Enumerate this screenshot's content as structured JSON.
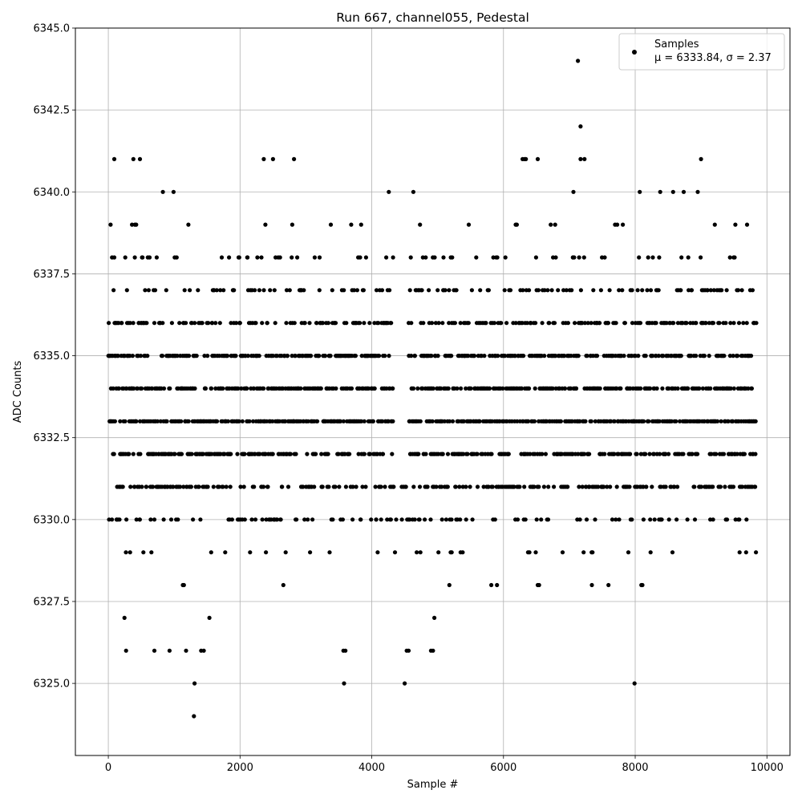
{
  "chart_data": {
    "type": "scatter",
    "title": "Run 667, channel055, Pedestal",
    "xlabel": "Sample #",
    "ylabel": "ADC Counts",
    "xlim": [
      -500,
      10350
    ],
    "ylim": [
      6322.8,
      6345.0
    ],
    "xticks": [
      0,
      2000,
      4000,
      6000,
      8000,
      10000
    ],
    "xtick_labels": [
      "0",
      "2000",
      "4000",
      "6000",
      "8000",
      "10000"
    ],
    "yticks": [
      6325.0,
      6327.5,
      6330.0,
      6332.5,
      6335.0,
      6337.5,
      6340.0,
      6342.5,
      6345.0
    ],
    "ytick_labels": [
      "6325.0",
      "6327.5",
      "6330.0",
      "6332.5",
      "6335.0",
      "6337.5",
      "6340.0",
      "6342.5",
      "6345.0"
    ],
    "grid": true,
    "legend_position": "top-right",
    "marker_color": "#000000",
    "series": [
      {
        "name": "Samples",
        "stats_label": "μ = 6333.84, σ = 2.37",
        "n_samples": 9840,
        "value_density": [
          {
            "value": 6324,
            "fraction": 0.0001
          },
          {
            "value": 6325,
            "fraction": 0.0004
          },
          {
            "value": 6326,
            "fraction": 0.0012
          },
          {
            "value": 6327,
            "fraction": 0.0033
          },
          {
            "value": 6328,
            "fraction": 0.0055
          },
          {
            "value": 6329,
            "fraction": 0.017
          },
          {
            "value": 6330,
            "fraction": 0.045
          },
          {
            "value": 6331,
            "fraction": 0.095
          },
          {
            "value": 6332,
            "fraction": 0.15
          },
          {
            "value": 6333,
            "fraction": 0.175
          },
          {
            "value": 6334,
            "fraction": 0.175
          },
          {
            "value": 6335,
            "fraction": 0.145
          },
          {
            "value": 6336,
            "fraction": 0.095
          },
          {
            "value": 6337,
            "fraction": 0.053
          },
          {
            "value": 6338,
            "fraction": 0.027
          },
          {
            "value": 6339,
            "fraction": 0.01
          },
          {
            "value": 6340,
            "fraction": 0.004
          },
          {
            "value": 6341,
            "fraction": 0.0012
          },
          {
            "value": 6342,
            "fraction": 0.0001
          },
          {
            "value": 6344,
            "fraction": 0.0001
          }
        ],
        "gaps": [
          {
            "x_range": [
              4330,
              4560
            ],
            "values_missing_above": 6331
          }
        ],
        "outliers": [
          {
            "x": 7130,
            "y": 6344
          },
          {
            "x": 7170,
            "y": 6342
          },
          {
            "x": 1300,
            "y": 6324
          },
          {
            "x": 1310,
            "y": 6325
          },
          {
            "x": 3580,
            "y": 6325
          },
          {
            "x": 4500,
            "y": 6325
          },
          {
            "x": 7990,
            "y": 6325
          },
          {
            "x": 90,
            "y": 6341
          },
          {
            "x": 380,
            "y": 6341
          },
          {
            "x": 480,
            "y": 6341
          },
          {
            "x": 2360,
            "y": 6341
          },
          {
            "x": 2500,
            "y": 6341
          },
          {
            "x": 2820,
            "y": 6341
          },
          {
            "x": 6290,
            "y": 6341
          },
          {
            "x": 6320,
            "y": 6341
          },
          {
            "x": 6340,
            "y": 6341
          },
          {
            "x": 6520,
            "y": 6341
          },
          {
            "x": 7170,
            "y": 6341
          },
          {
            "x": 7230,
            "y": 6341
          },
          {
            "x": 9000,
            "y": 6341
          },
          {
            "x": 270,
            "y": 6326
          },
          {
            "x": 700,
            "y": 6326
          },
          {
            "x": 930,
            "y": 6326
          },
          {
            "x": 1180,
            "y": 6326
          },
          {
            "x": 1410,
            "y": 6326
          },
          {
            "x": 1450,
            "y": 6326
          },
          {
            "x": 3570,
            "y": 6326
          },
          {
            "x": 3600,
            "y": 6326
          },
          {
            "x": 4530,
            "y": 6326
          },
          {
            "x": 4560,
            "y": 6326
          },
          {
            "x": 4900,
            "y": 6326
          },
          {
            "x": 4930,
            "y": 6326
          }
        ]
      }
    ]
  }
}
